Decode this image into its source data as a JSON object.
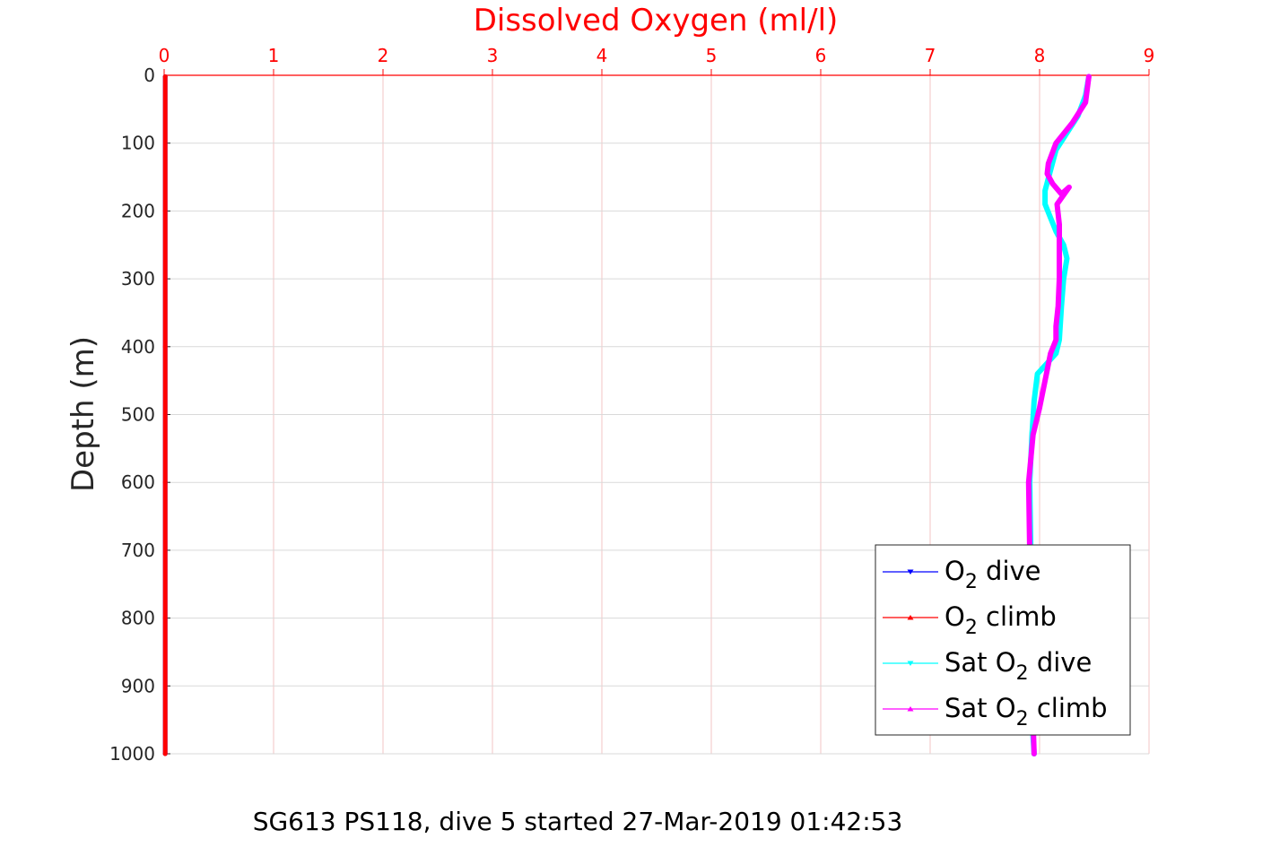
{
  "chart_data": {
    "type": "line",
    "title": "Dissolved Oxygen (ml/l)",
    "ylabel": "Depth (m)",
    "caption": "SG613 PS118, dive 5 started 27-Mar-2019 01:42:53",
    "xlim": [
      0,
      9
    ],
    "ylim": [
      0,
      1000
    ],
    "y_reversed": true,
    "x_axis_location": "top",
    "x_ticks": [
      "0",
      "1",
      "2",
      "3",
      "4",
      "5",
      "6",
      "7",
      "8",
      "9"
    ],
    "y_ticks": [
      "0",
      "100",
      "200",
      "300",
      "400",
      "500",
      "600",
      "700",
      "800",
      "900",
      "1000"
    ],
    "grid": true,
    "legend_position": "bottom-right",
    "colors": {
      "title": "#ff0000",
      "x_axis": "#ff0000",
      "x_grid": "#f3c4c4",
      "y_grid": "#d9d9d9",
      "text": "#262626"
    },
    "series": [
      {
        "name": "O2 dive",
        "legend": {
          "base": "O",
          "sub": "2",
          "suffix": " dive"
        },
        "color": "#0000ff",
        "marker": "triangle-down",
        "x": [
          0.01,
          0.01,
          0.01,
          0.01,
          0.01,
          0.01
        ],
        "y": [
          2,
          200,
          400,
          600,
          800,
          1000
        ]
      },
      {
        "name": "O2 climb",
        "legend": {
          "base": "O",
          "sub": "2",
          "suffix": " climb"
        },
        "color": "#ff0000",
        "marker": "triangle-up",
        "x": [
          0.01,
          0.01,
          0.01,
          0.01,
          0.01,
          0.01
        ],
        "y": [
          2,
          200,
          400,
          600,
          800,
          1000
        ]
      },
      {
        "name": "Sat O2 dive",
        "legend": {
          "prefix": "Sat ",
          "base": "O",
          "sub": "2",
          "suffix": " dive"
        },
        "color": "#00ffff",
        "marker": "triangle-down",
        "x": [
          8.45,
          8.42,
          8.35,
          8.25,
          8.15,
          8.1,
          8.05,
          8.05,
          8.1,
          8.15,
          8.22,
          8.25,
          8.22,
          8.2,
          8.18,
          8.15,
          7.98,
          7.95,
          7.93,
          7.91,
          7.92,
          7.93,
          7.93,
          7.93,
          7.95
        ],
        "y": [
          2,
          30,
          60,
          85,
          110,
          140,
          170,
          190,
          210,
          230,
          250,
          270,
          300,
          340,
          390,
          410,
          440,
          480,
          530,
          600,
          700,
          800,
          900,
          950,
          1000
        ]
      },
      {
        "name": "Sat O2 climb",
        "legend": {
          "prefix": "Sat ",
          "base": "O",
          "sub": "2",
          "suffix": " climb"
        },
        "color": "#ff00ff",
        "marker": "triangle-up",
        "x": [
          8.45,
          8.42,
          8.3,
          8.15,
          8.08,
          8.07,
          8.12,
          8.2,
          8.27,
          8.16,
          8.18,
          8.18,
          8.18,
          8.17,
          8.15,
          8.15,
          8.1,
          8.05,
          8.0,
          7.94,
          7.9,
          7.91,
          7.93,
          7.93,
          7.94,
          7.95
        ],
        "y": [
          2,
          40,
          70,
          100,
          130,
          145,
          160,
          175,
          165,
          190,
          220,
          260,
          300,
          340,
          370,
          390,
          410,
          450,
          490,
          530,
          600,
          700,
          800,
          900,
          950,
          1000
        ]
      }
    ]
  }
}
